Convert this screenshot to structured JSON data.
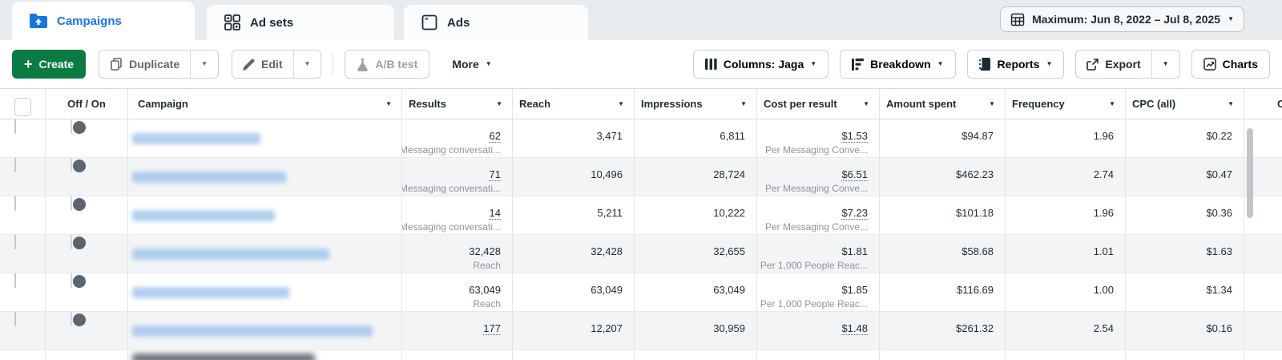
{
  "tabs": [
    {
      "label": "Campaigns",
      "active": true
    },
    {
      "label": "Ad sets",
      "active": false
    },
    {
      "label": "Ads",
      "active": false
    }
  ],
  "date_range": {
    "label": "Maximum: Jun 8, 2022 – Jul 8, 2025"
  },
  "toolbar": {
    "create": "Create",
    "duplicate": "Duplicate",
    "edit": "Edit",
    "ab_test": "A/B test",
    "more": "More",
    "columns": "Columns: Jaga",
    "breakdown": "Breakdown",
    "reports": "Reports",
    "export": "Export",
    "charts": "Charts"
  },
  "colors": {
    "accent_blue": "#1b74e4",
    "create_green": "#0a7c42",
    "row_alt": "#f3f4f6"
  },
  "table": {
    "headers": {
      "off_on": "Off / On",
      "campaign": "Campaign",
      "results": "Results",
      "reach": "Reach",
      "impressions": "Impressions",
      "cost_per_result": "Cost per result",
      "amount_spent": "Amount spent",
      "frequency": "Frequency",
      "cpc": "CPC (all)",
      "partial_next": "C"
    },
    "rows": [
      {
        "toggle": "off",
        "name_blur_width": 160,
        "results": "62",
        "results_sub": "Messaging conversati...",
        "results_dotted": true,
        "reach": "3,471",
        "impressions": "6,811",
        "cost_per_result": "$1.53",
        "cost_sub": "Per Messaging Conve...",
        "cost_dotted": true,
        "amount_spent": "$94.87",
        "frequency": "1.96",
        "cpc": "$0.22"
      },
      {
        "toggle": "off",
        "name_blur_width": 192,
        "results": "71",
        "results_sub": "Messaging conversati...",
        "results_dotted": true,
        "reach": "10,496",
        "impressions": "28,724",
        "cost_per_result": "$6.51",
        "cost_sub": "Per Messaging Conve...",
        "cost_dotted": true,
        "amount_spent": "$462.23",
        "frequency": "2.74",
        "cpc": "$0.47"
      },
      {
        "toggle": "off",
        "name_blur_width": 178,
        "results": "14",
        "results_sub": "Messaging conversati...",
        "results_dotted": true,
        "reach": "5,211",
        "impressions": "10,222",
        "cost_per_result": "$7.23",
        "cost_sub": "Per Messaging Conve...",
        "cost_dotted": true,
        "amount_spent": "$101.18",
        "frequency": "1.96",
        "cpc": "$0.36"
      },
      {
        "toggle": "off",
        "name_blur_width": 246,
        "results": "32,428",
        "results_sub": "Reach",
        "results_dotted": false,
        "reach": "32,428",
        "impressions": "32,655",
        "cost_per_result": "$1.81",
        "cost_sub": "Per 1,000 People Reac...",
        "cost_dotted": false,
        "amount_spent": "$58.68",
        "frequency": "1.01",
        "cpc": "$1.63"
      },
      {
        "toggle": "off",
        "name_blur_width": 196,
        "results": "63,049",
        "results_sub": "Reach",
        "results_dotted": false,
        "reach": "63,049",
        "impressions": "63,049",
        "cost_per_result": "$1.85",
        "cost_sub": "Per 1,000 People Reac...",
        "cost_dotted": false,
        "amount_spent": "$116.69",
        "frequency": "1.00",
        "cpc": "$1.34"
      },
      {
        "toggle": "off",
        "name_blur_width": 300,
        "results": "177",
        "results_sub": null,
        "results_dotted": true,
        "reach": "12,207",
        "impressions": "30,959",
        "cost_per_result": "$1.48",
        "cost_sub": null,
        "cost_dotted": true,
        "amount_spent": "$261.32",
        "frequency": "2.54",
        "cpc": "$0.16"
      }
    ],
    "partial_row": {
      "name_blur_width": 228
    }
  }
}
